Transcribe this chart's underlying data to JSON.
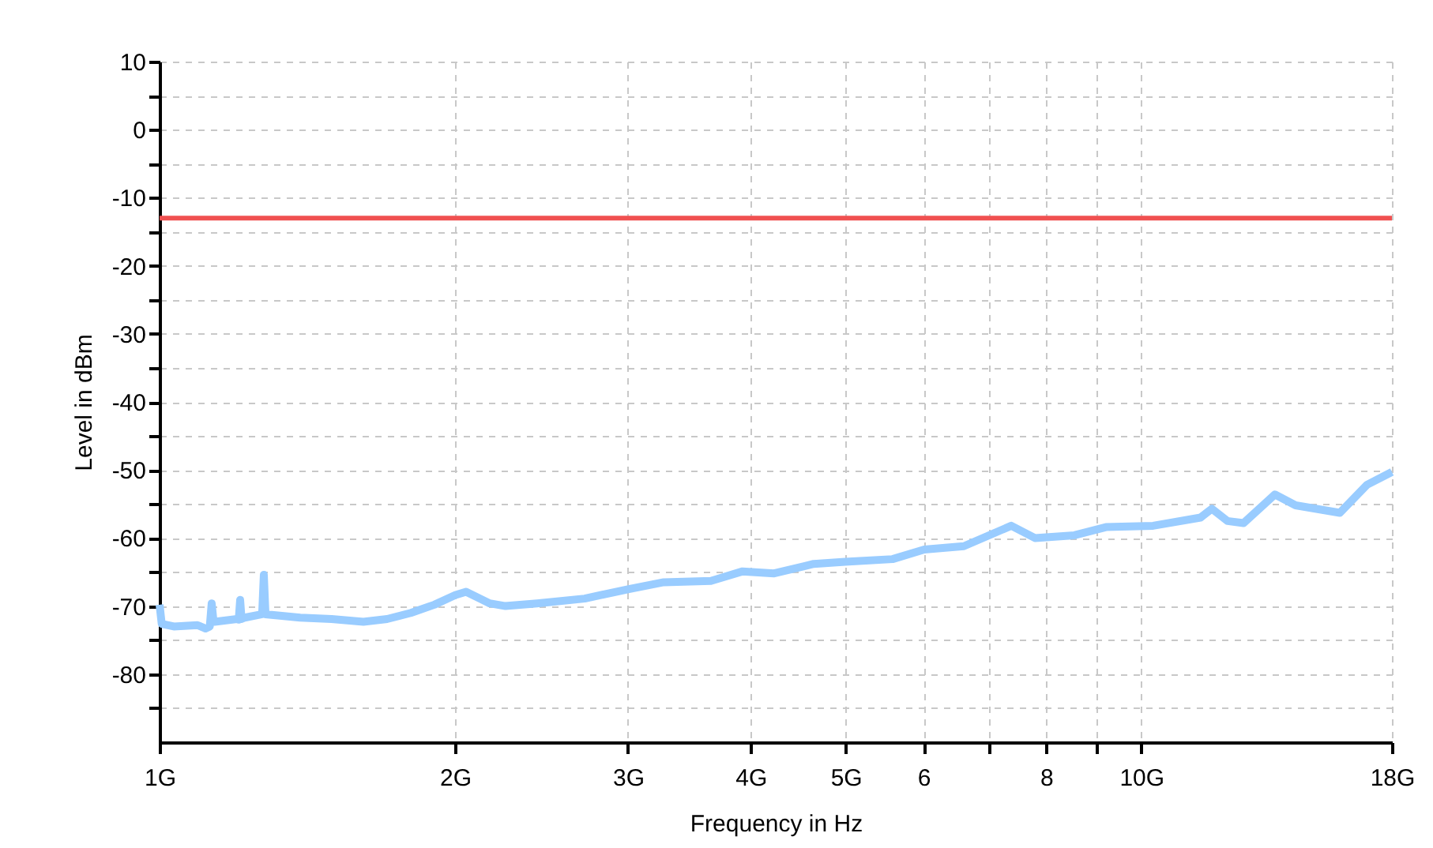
{
  "chart_data": {
    "type": "line",
    "xlabel": "Frequency in Hz",
    "ylabel": "Level in dBm",
    "log": "x",
    "grid": true,
    "line_style": "solid",
    "marker": "none",
    "xlim": [
      1,
      18
    ],
    "xticks": [
      {
        "value": 1,
        "label": "1G"
      },
      {
        "value": 2,
        "label": "2G"
      },
      {
        "value": 3,
        "label": "3G"
      },
      {
        "value": 4,
        "label": "4G"
      },
      {
        "value": 5,
        "label": "5G"
      },
      6,
      {
        "value": 7,
        "label": null
      },
      8,
      {
        "value": 9,
        "label": null
      },
      {
        "value": 10,
        "label": "10G"
      },
      {
        "value": 18,
        "label": "18G"
      }
    ],
    "ylim": [
      -90,
      10
    ],
    "yticks": [
      10,
      {
        "value": 5,
        "label": null
      },
      0,
      {
        "value": -5,
        "label": null
      },
      -10,
      {
        "value": -15,
        "label": null
      },
      -20,
      {
        "value": -25,
        "label": null
      },
      -30,
      {
        "value": -35,
        "label": null
      },
      -40,
      {
        "value": -45,
        "label": null
      },
      -50,
      {
        "value": -55,
        "label": null
      },
      -60,
      {
        "value": -65,
        "label": null
      },
      -70,
      {
        "value": -75,
        "label": null
      },
      -80,
      {
        "value": -85,
        "label": null
      }
    ],
    "series": [
      {
        "color": "#99ccff",
        "x": [
          1.0,
          1.005,
          1.034,
          1.093,
          1.114,
          1.125,
          1.13,
          1.135,
          1.138,
          1.199,
          1.204,
          1.208,
          1.212,
          1.221,
          1.272,
          1.277,
          1.282,
          1.391,
          1.497,
          1.613,
          1.705,
          1.803,
          1.905,
          2.0,
          2.052,
          2.169,
          2.251,
          2.424,
          2.71,
          3.006,
          3.262,
          3.644,
          3.925,
          4.227,
          4.637,
          4.994,
          5.58,
          6.01,
          6.595,
          7.371,
          7.792,
          8.548,
          9.204,
          10.28,
          11.49,
          11.8,
          12.24,
          12.71,
          13.68,
          14.36,
          15.93,
          16.97,
          18.0
        ],
        "values": [
          -69.8,
          -72.6,
          -73.0,
          -72.8,
          -73.3,
          -73.0,
          -69.6,
          -72.3,
          -72.3,
          -71.9,
          -72.0,
          -69.1,
          -71.9,
          -71.7,
          -71.2,
          -65.4,
          -71.2,
          -71.7,
          -71.9,
          -72.3,
          -71.9,
          -71.0,
          -69.8,
          -68.4,
          -67.9,
          -69.6,
          -70.0,
          -69.6,
          -68.9,
          -67.5,
          -66.5,
          -66.3,
          -64.9,
          -65.2,
          -63.8,
          -63.5,
          -63.1,
          -61.7,
          -61.2,
          -58.2,
          -60.0,
          -59.6,
          -58.4,
          -58.2,
          -57.0,
          -55.7,
          -57.5,
          -57.8,
          -53.6,
          -55.2,
          -56.3,
          -52.2,
          -50.3
        ]
      }
    ],
    "ref_lines": [
      {
        "axis": "y",
        "value": -13,
        "color": "#f05050"
      }
    ]
  }
}
